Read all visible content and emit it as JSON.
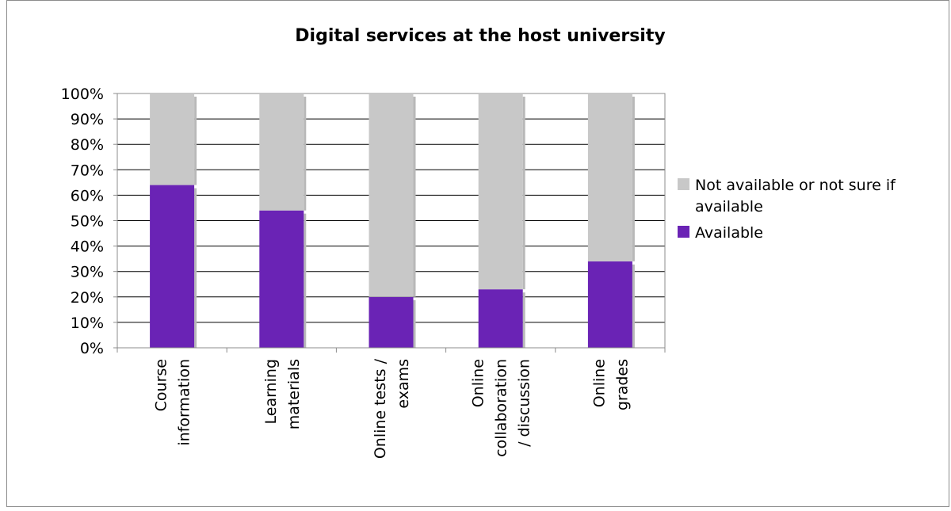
{
  "chart_data": {
    "type": "bar",
    "stacked": true,
    "title": "Digital services at the host university",
    "categories": [
      [
        "Course",
        "information"
      ],
      [
        "Learning",
        "materials"
      ],
      [
        "Online tests /",
        "exams"
      ],
      [
        "Online",
        "collaboration",
        "/ discussion"
      ],
      [
        "Online",
        "grades"
      ]
    ],
    "series": [
      {
        "name": "Available",
        "color": "#6a23b5",
        "values": [
          64,
          54,
          20,
          23,
          34
        ]
      },
      {
        "name": "Not available or not sure if available",
        "color": "#c8c8c8",
        "values": [
          36,
          46,
          80,
          77,
          66
        ]
      }
    ],
    "y_ticks": [
      "0%",
      "10%",
      "20%",
      "30%",
      "40%",
      "50%",
      "60%",
      "70%",
      "80%",
      "90%",
      "100%"
    ],
    "ylim": [
      0,
      100
    ],
    "grid": true,
    "legend_position": "right",
    "legend": [
      {
        "label": "Not available or not sure if available",
        "lines": [
          "Not available or not sure if",
          "available"
        ],
        "color": "#c8c8c8"
      },
      {
        "label": "Available",
        "lines": [
          "Available"
        ],
        "color": "#6a23b5"
      }
    ]
  }
}
